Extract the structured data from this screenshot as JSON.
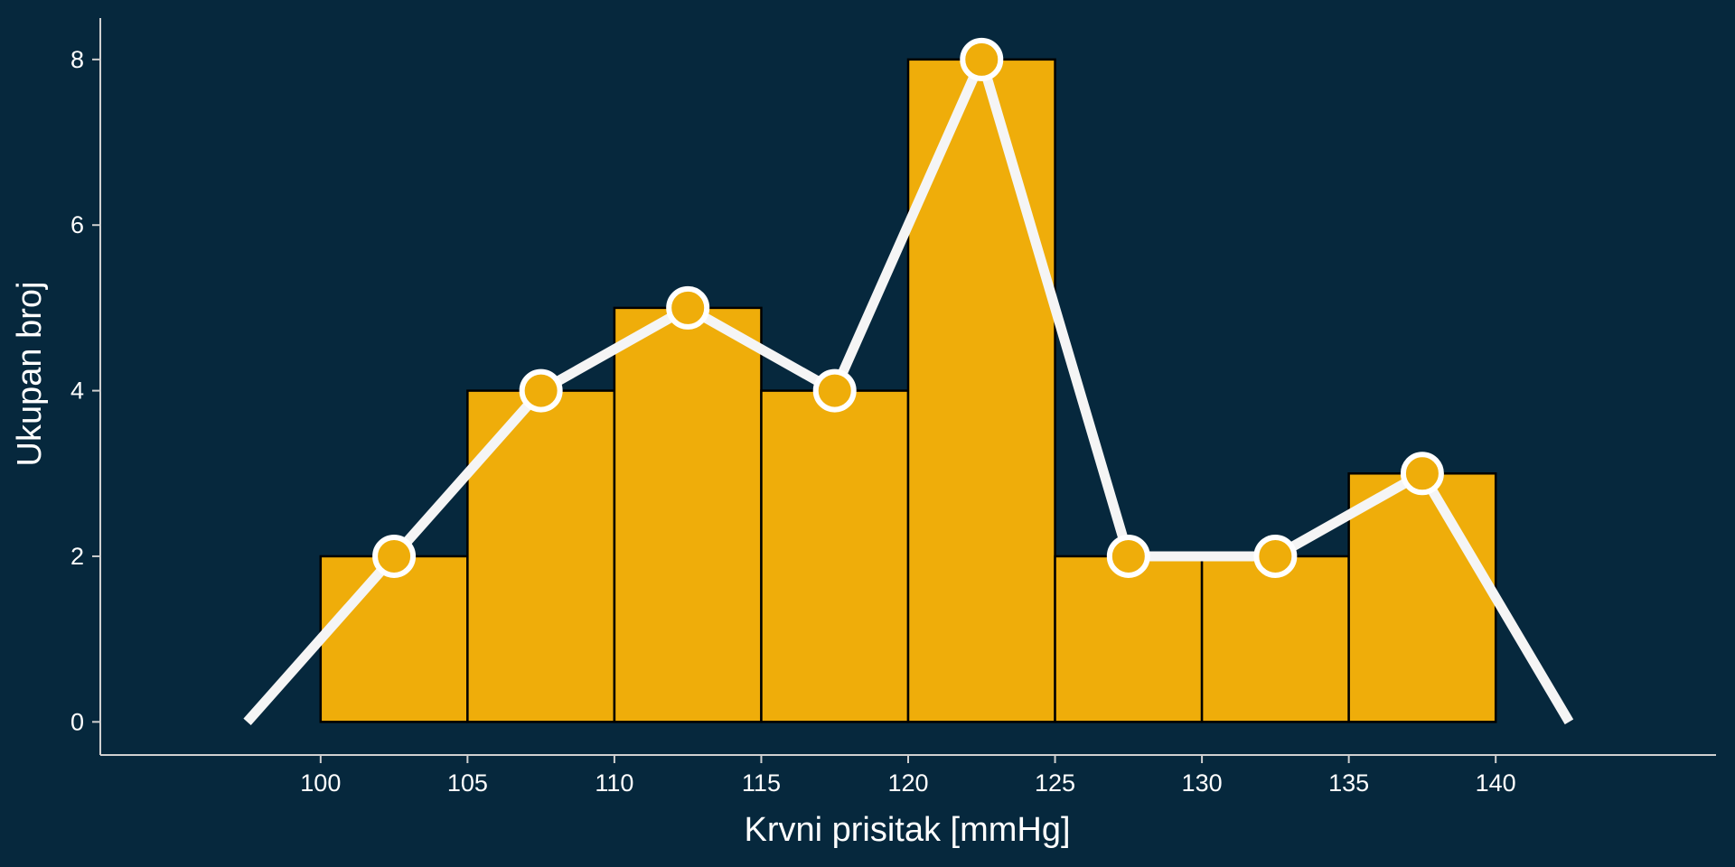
{
  "colors": {
    "background": "#06283d",
    "bar_fill": "#efad0a",
    "bar_stroke": "#000000",
    "line": "#f5f5f5",
    "marker_fill": "#efad0a",
    "marker_stroke": "#ffffff",
    "axis": "#d0d0d0",
    "text": "#ffffff"
  },
  "chart_data": {
    "type": "bar",
    "overlay": "line",
    "title": "",
    "xlabel": "Krvni prisitak [mmHg]",
    "ylabel": "Ukupan broj",
    "bin_edges": [
      100,
      105,
      110,
      115,
      120,
      125,
      130,
      135,
      140
    ],
    "bins": [
      {
        "start": 100,
        "end": 105,
        "count": 2
      },
      {
        "start": 105,
        "end": 110,
        "count": 4
      },
      {
        "start": 110,
        "end": 115,
        "count": 5
      },
      {
        "start": 115,
        "end": 120,
        "count": 4
      },
      {
        "start": 120,
        "end": 125,
        "count": 8
      },
      {
        "start": 125,
        "end": 130,
        "count": 2
      },
      {
        "start": 130,
        "end": 135,
        "count": 2
      },
      {
        "start": 135,
        "end": 140,
        "count": 3
      }
    ],
    "frequency_polygon": {
      "x": [
        97.5,
        102.5,
        107.5,
        112.5,
        117.5,
        122.5,
        127.5,
        132.5,
        137.5,
        142.5
      ],
      "y": [
        0,
        2,
        4,
        5,
        4,
        8,
        2,
        2,
        3,
        0
      ],
      "markers_at": [
        102.5,
        107.5,
        112.5,
        117.5,
        122.5,
        127.5,
        132.5,
        137.5
      ]
    },
    "x_ticks": [
      100,
      105,
      110,
      115,
      120,
      125,
      130,
      135,
      140
    ],
    "y_ticks": [
      0,
      2,
      4,
      6,
      8
    ],
    "xlim": [
      92.5,
      147.5
    ],
    "ylim": [
      -0.4,
      8.5
    ],
    "grid": false,
    "legend": "none"
  }
}
